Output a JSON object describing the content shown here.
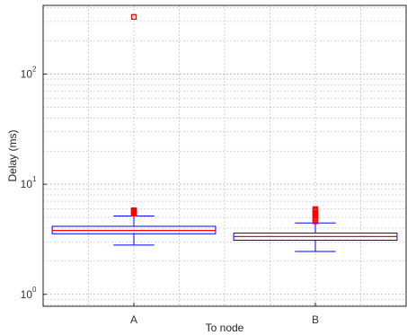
{
  "chart_data": {
    "type": "box",
    "xlabel": "To node",
    "ylabel": "Delay (ms)",
    "categories": [
      "A",
      "B"
    ],
    "y_scale": "log",
    "ylim": [
      0.78,
      420
    ],
    "y_ticks": [
      {
        "value": 1,
        "base": "10",
        "exp": "0"
      },
      {
        "value": 10,
        "base": "10",
        "exp": "1"
      },
      {
        "value": 100,
        "base": "10",
        "exp": "2"
      }
    ],
    "grid": true,
    "colors": {
      "box": "#0000ff",
      "median": "#ff0000",
      "outlier": "#ff0000",
      "grid": "#b0b0b0"
    },
    "boxes": [
      {
        "category": "A",
        "whisker_low": 2.8,
        "q1": 3.55,
        "median": 3.8,
        "q3": 4.15,
        "whisker_high": 5.15,
        "outliers": [
          5.4,
          5.5,
          5.6,
          5.7,
          5.8,
          330
        ]
      },
      {
        "category": "B",
        "whisker_low": 2.45,
        "q1": 3.1,
        "median": 3.35,
        "q3": 3.6,
        "whisker_high": 4.45,
        "outliers": [
          4.6,
          4.75,
          4.9,
          5.05,
          5.2,
          5.35,
          5.5,
          5.65,
          5.8,
          5.95
        ]
      }
    ]
  }
}
